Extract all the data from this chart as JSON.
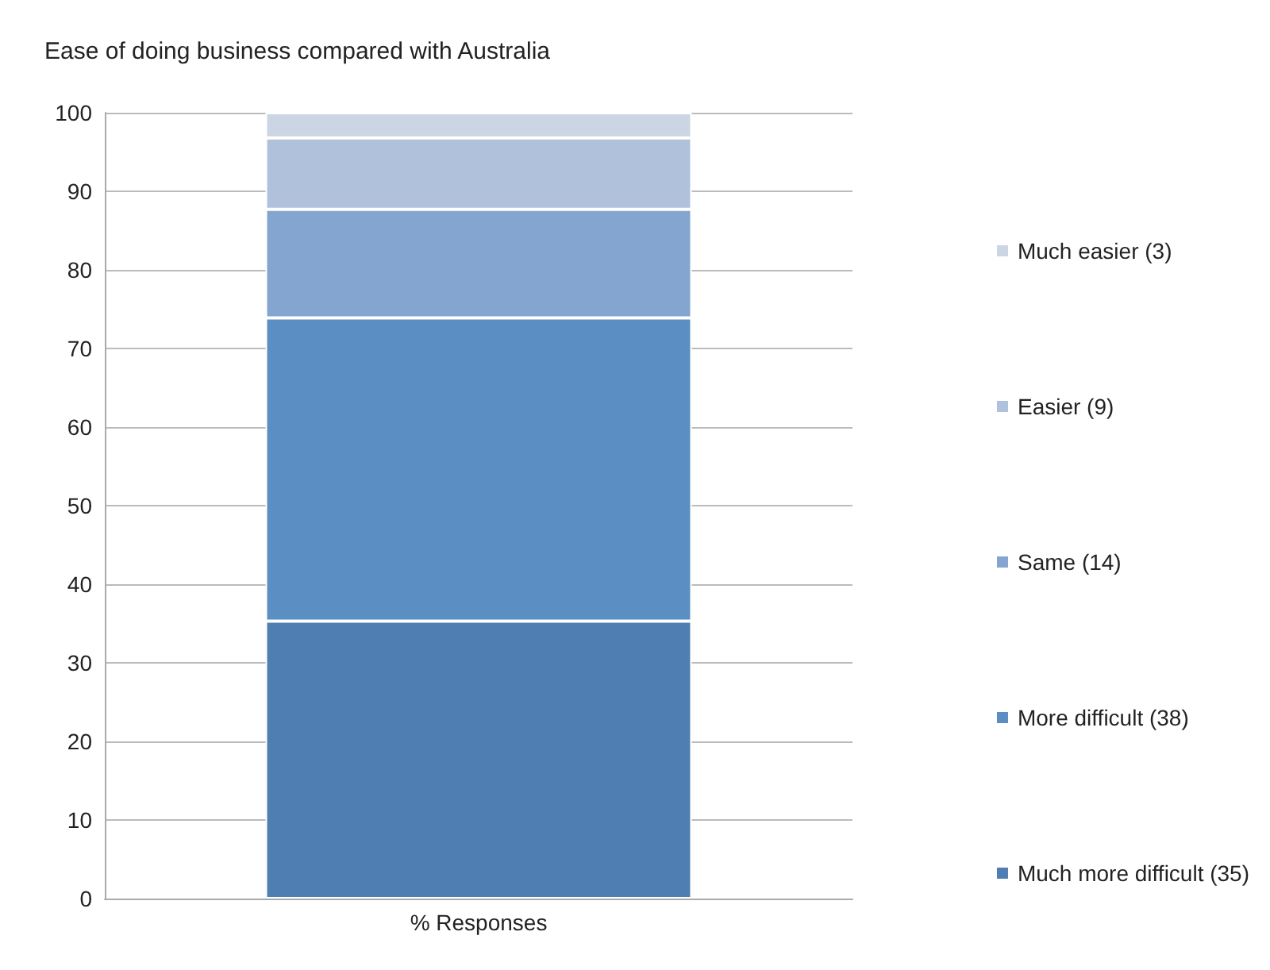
{
  "chart_data": {
    "type": "bar",
    "title": "Ease of doing business compared with Australia",
    "categories": [
      "% Responses"
    ],
    "stacked": true,
    "series": [
      {
        "name": "Much more difficult (35)",
        "color": "#4f7fb2",
        "values": [
          35.3
        ]
      },
      {
        "name": "More difficult (38)",
        "color": "#5b8ec2",
        "values": [
          38.6
        ]
      },
      {
        "name": "Same (14)",
        "color": "#84a5cf",
        "values": [
          13.8
        ]
      },
      {
        "name": "Easier (9)",
        "color": "#b0c1dc",
        "values": [
          9.1
        ]
      },
      {
        "name": "Much easier (3)",
        "color": "#ccd5e4",
        "values": [
          3.2
        ]
      }
    ],
    "ylim": [
      0,
      100
    ],
    "yticks": [
      0,
      10,
      20,
      30,
      40,
      50,
      60,
      70,
      80,
      90,
      100
    ],
    "grid": "y",
    "legend": "right"
  }
}
